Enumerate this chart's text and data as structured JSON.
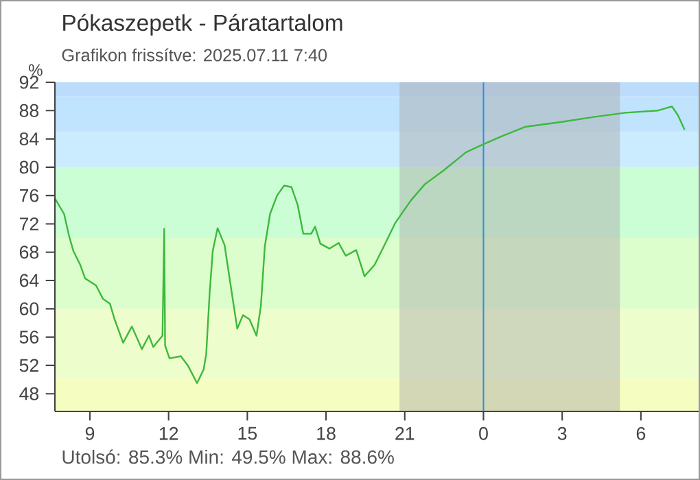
{
  "chart_data": {
    "type": "line",
    "title": "Pókaszepetk - Páratartalom",
    "subtitle": "Grafikon frissítve: 2025.07.11 7:40",
    "ylabel": "%",
    "annotations": [
      "Utolsó: 85.3%   Min: 49.5%   Max: 88.6%"
    ],
    "color": "#3cb93c",
    "x": [
      "2025-07-10T07:40",
      "2025-07-10T08:01",
      "2025-07-10T08:12",
      "2025-07-10T08:22",
      "2025-07-10T08:38",
      "2025-07-10T08:49",
      "2025-07-10T09:14",
      "2025-07-10T09:30",
      "2025-07-10T09:46",
      "2025-07-10T09:56",
      "2025-07-10T10:16",
      "2025-07-10T10:36",
      "2025-07-10T10:59",
      "2025-07-10T11:15",
      "2025-07-10T11:25",
      "2025-07-10T11:46",
      "2025-07-10T11:50",
      "2025-07-10T11:52",
      "2025-07-10T12:02",
      "2025-07-10T12:28",
      "2025-07-10T12:44",
      "2025-07-10T13:05",
      "2025-07-10T13:20",
      "2025-07-10T13:26",
      "2025-07-10T13:34",
      "2025-07-10T13:41",
      "2025-07-10T13:52",
      "2025-07-10T14:08",
      "2025-07-10T14:18",
      "2025-07-10T14:29",
      "2025-07-10T14:37",
      "2025-07-10T14:50",
      "2025-07-10T15:05",
      "2025-07-10T15:21",
      "2025-07-10T15:31",
      "2025-07-10T15:40",
      "2025-07-10T15:52",
      "2025-07-10T16:08",
      "2025-07-10T16:24",
      "2025-07-10T16:41",
      "2025-07-10T16:55",
      "2025-07-10T17:08",
      "2025-07-10T17:26",
      "2025-07-10T17:35",
      "2025-07-10T17:47",
      "2025-07-10T18:08",
      "2025-07-10T18:29",
      "2025-07-10T18:45",
      "2025-07-10T19:09",
      "2025-07-10T19:28",
      "2025-07-10T19:51",
      "2025-07-10T20:12",
      "2025-07-10T20:38",
      "2025-07-10T21:14",
      "2025-07-10T21:46",
      "2025-07-10T22:28",
      "2025-07-10T23:20",
      "2025-07-10T23:58",
      "2025-07-11T00:43",
      "2025-07-11T01:35",
      "2025-07-11T02:59",
      "2025-07-11T04:12",
      "2025-07-11T05:25",
      "2025-07-11T06:38",
      "2025-07-11T07:11",
      "2025-07-11T07:25",
      "2025-07-11T07:40"
    ],
    "values": [
      75.6,
      73.4,
      70.4,
      68.2,
      66.2,
      64.3,
      63.3,
      61.4,
      60.7,
      58.6,
      55.2,
      57.5,
      54.3,
      56.2,
      54.6,
      56.2,
      71.3,
      54.8,
      53.0,
      53.3,
      52.0,
      49.5,
      51.4,
      53.6,
      62.4,
      68.2,
      71.4,
      69.0,
      64.9,
      60.4,
      57.2,
      59.1,
      58.5,
      56.2,
      60.4,
      68.8,
      73.4,
      76.0,
      77.4,
      77.2,
      74.7,
      70.6,
      70.6,
      71.6,
      69.2,
      68.5,
      69.3,
      67.5,
      68.3,
      64.6,
      66.2,
      68.8,
      72.1,
      75.3,
      77.6,
      79.5,
      82.1,
      83.2,
      84.4,
      85.7,
      86.4,
      87.1,
      87.7,
      88.0,
      88.6,
      87.3,
      85.3
    ],
    "xlim": [
      "2025-07-10T07:40",
      "2025-07-11T08:12"
    ],
    "ylim": [
      45.5,
      92
    ],
    "xticks": [
      {
        "value": "2025-07-10T09:00",
        "label": "9"
      },
      {
        "value": "2025-07-10T12:00",
        "label": "12"
      },
      {
        "value": "2025-07-10T15:00",
        "label": "15"
      },
      {
        "value": "2025-07-10T18:00",
        "label": "18"
      },
      {
        "value": "2025-07-10T21:00",
        "label": "21"
      },
      {
        "value": "2025-07-11T00:00",
        "label": "0"
      },
      {
        "value": "2025-07-11T03:00",
        "label": "3"
      },
      {
        "value": "2025-07-11T06:00",
        "label": "6"
      }
    ],
    "yticks": [
      48,
      52,
      56,
      60,
      64,
      68,
      72,
      76,
      80,
      84,
      88,
      92
    ],
    "bands": [
      {
        "axis": "y",
        "from": 90,
        "to": 92,
        "color": "#bcdcfc"
      },
      {
        "axis": "y",
        "from": 85,
        "to": 90,
        "color": "#c0e4fd"
      },
      {
        "axis": "y",
        "from": 80,
        "to": 85,
        "color": "#cbebfe"
      },
      {
        "axis": "y",
        "from": 70,
        "to": 80,
        "color": "#ccfed6"
      },
      {
        "axis": "y",
        "from": 60,
        "to": 70,
        "color": "#dcfdcc"
      },
      {
        "axis": "y",
        "from": 50,
        "to": 60,
        "color": "#eefdcc"
      },
      {
        "axis": "y",
        "from": 45.5,
        "to": 50,
        "color": "#f6fdc0"
      },
      {
        "axis": "x",
        "from": "2025-07-10T20:48",
        "to": "2025-07-11T05:12",
        "color": "#a8a8a8"
      }
    ],
    "ref_lines": [
      {
        "axis": "x",
        "value": "2025-07-11T00:00",
        "color": "#2a90e0"
      }
    ]
  }
}
